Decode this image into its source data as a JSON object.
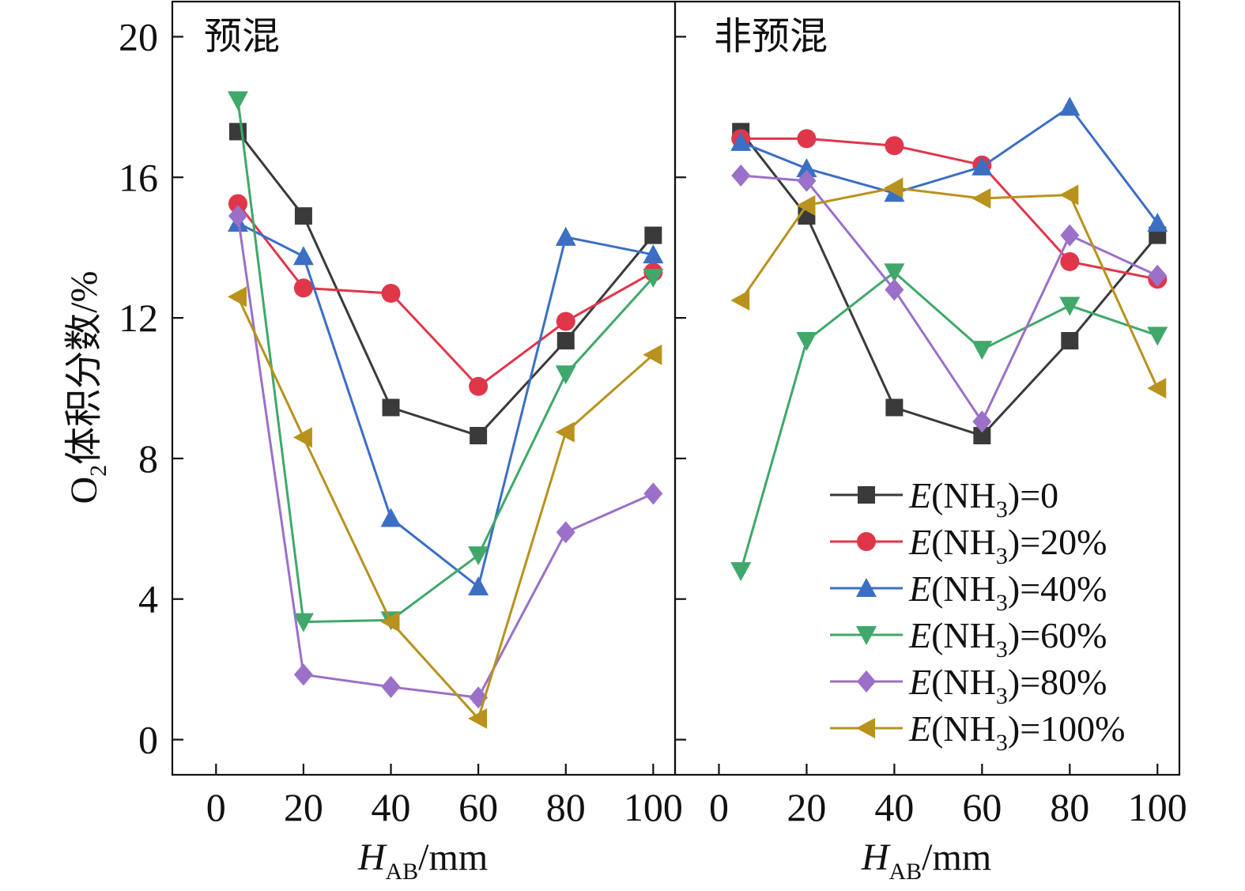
{
  "chart_data": {
    "type": "line",
    "ylabel_main": "O",
    "ylabel_sub": "2",
    "ylabel_rest": "体积分数/%",
    "xlabel_main": "H",
    "xlabel_sub": "AB",
    "xlabel_rest": "/mm",
    "xlim": [
      -10,
      105
    ],
    "ylim": [
      -1,
      21
    ],
    "xticks": [
      0,
      20,
      40,
      60,
      80,
      100
    ],
    "yticks": [
      0,
      4,
      8,
      12,
      16,
      20
    ],
    "grid": false,
    "legend_position": "bottom-right of right panel",
    "legend_prefix": "E",
    "legend_species_main": "(NH",
    "legend_species_sub": "3",
    "legend_species_close": ")",
    "series_styles": [
      {
        "legend_value": "=0",
        "color": "#3a3a3a",
        "marker": "square"
      },
      {
        "legend_value": "=20%",
        "color": "#e0364a",
        "marker": "circle"
      },
      {
        "legend_value": "=40%",
        "color": "#3b6fc4",
        "marker": "triangle-up"
      },
      {
        "legend_value": "=60%",
        "color": "#3fa86a",
        "marker": "triangle-down"
      },
      {
        "legend_value": "=80%",
        "color": "#9a70c8",
        "marker": "diamond"
      },
      {
        "legend_value": "=100%",
        "color": "#b8921c",
        "marker": "triangle-left"
      }
    ],
    "panels": [
      {
        "title": "预混",
        "x": [
          5,
          20,
          40,
          60,
          80,
          100
        ],
        "series": [
          {
            "values": [
              17.3,
              14.9,
              9.45,
              8.65,
              11.35,
              14.35
            ]
          },
          {
            "values": [
              15.25,
              12.85,
              12.7,
              10.05,
              11.9,
              13.3
            ]
          },
          {
            "values": [
              14.7,
              13.75,
              6.3,
              4.35,
              14.3,
              13.8
            ]
          },
          {
            "values": [
              18.2,
              3.35,
              3.4,
              5.25,
              10.4,
              13.15
            ]
          },
          {
            "values": [
              14.9,
              1.85,
              1.5,
              1.2,
              5.9,
              7.0
            ]
          },
          {
            "values": [
              12.6,
              8.6,
              3.35,
              0.6,
              8.75,
              10.95
            ]
          }
        ]
      },
      {
        "title": "非预混",
        "x": [
          5,
          20,
          40,
          60,
          80,
          100
        ],
        "series": [
          {
            "values": [
              17.3,
              14.9,
              9.45,
              8.65,
              11.35,
              14.35
            ]
          },
          {
            "values": [
              17.1,
              17.1,
              16.9,
              16.35,
              13.6,
              13.1
            ]
          },
          {
            "values": [
              17.0,
              16.25,
              15.55,
              16.3,
              18.0,
              14.7
            ]
          },
          {
            "values": [
              4.8,
              11.35,
              13.3,
              11.1,
              12.35,
              11.5
            ]
          },
          {
            "values": [
              16.05,
              15.9,
              12.8,
              9.05,
              14.35,
              13.2
            ]
          },
          {
            "values": [
              12.5,
              15.2,
              15.7,
              15.4,
              15.5,
              10.0
            ]
          }
        ]
      }
    ]
  }
}
